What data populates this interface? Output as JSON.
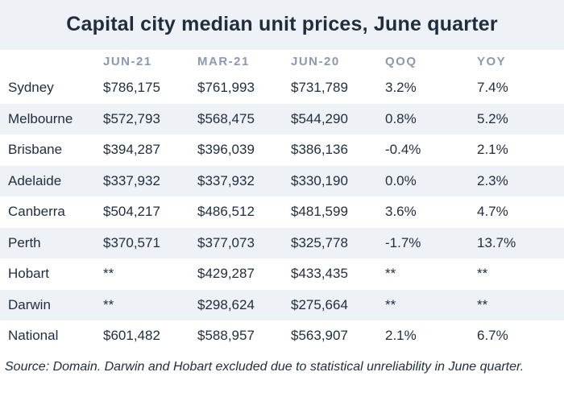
{
  "title": "Capital city median unit prices, June quarter",
  "columns": [
    "",
    "JUN-21",
    "MAR-21",
    "JUN-20",
    "QOQ",
    "YOY"
  ],
  "rows": [
    {
      "city": "Sydney",
      "jun21": "$786,175",
      "mar21": "$761,993",
      "jun20": "$731,789",
      "qoq": "3.2%",
      "yoy": "7.4%"
    },
    {
      "city": "Melbourne",
      "jun21": "$572,793",
      "mar21": "$568,475",
      "jun20": "$544,290",
      "qoq": "0.8%",
      "yoy": "5.2%"
    },
    {
      "city": "Brisbane",
      "jun21": "$394,287",
      "mar21": "$396,039",
      "jun20": "$386,136",
      "qoq": "-0.4%",
      "yoy": "2.1%"
    },
    {
      "city": "Adelaide",
      "jun21": "$337,932",
      "mar21": "$337,932",
      "jun20": "$330,190",
      "qoq": "0.0%",
      "yoy": "2.3%"
    },
    {
      "city": "Canberra",
      "jun21": "$504,217",
      "mar21": "$486,512",
      "jun20": "$481,599",
      "qoq": "3.6%",
      "yoy": "4.7%"
    },
    {
      "city": "Perth",
      "jun21": "$370,571",
      "mar21": "$377,073",
      "jun20": "$325,778",
      "qoq": "-1.7%",
      "yoy": "13.7%"
    },
    {
      "city": "Hobart",
      "jun21": "**",
      "mar21": "$429,287",
      "jun20": "$433,435",
      "qoq": "**",
      "yoy": "**"
    },
    {
      "city": "Darwin",
      "jun21": "**",
      "mar21": "$298,624",
      "jun20": "$275,664",
      "qoq": "**",
      "yoy": "**"
    },
    {
      "city": "National",
      "jun21": "$601,482",
      "mar21": "$588,957",
      "jun20": "$563,907",
      "qoq": "2.1%",
      "yoy": "6.7%"
    }
  ],
  "source": "Source: Domain. Darwin and Hobart excluded due to statistical unreliability in June quarter."
}
